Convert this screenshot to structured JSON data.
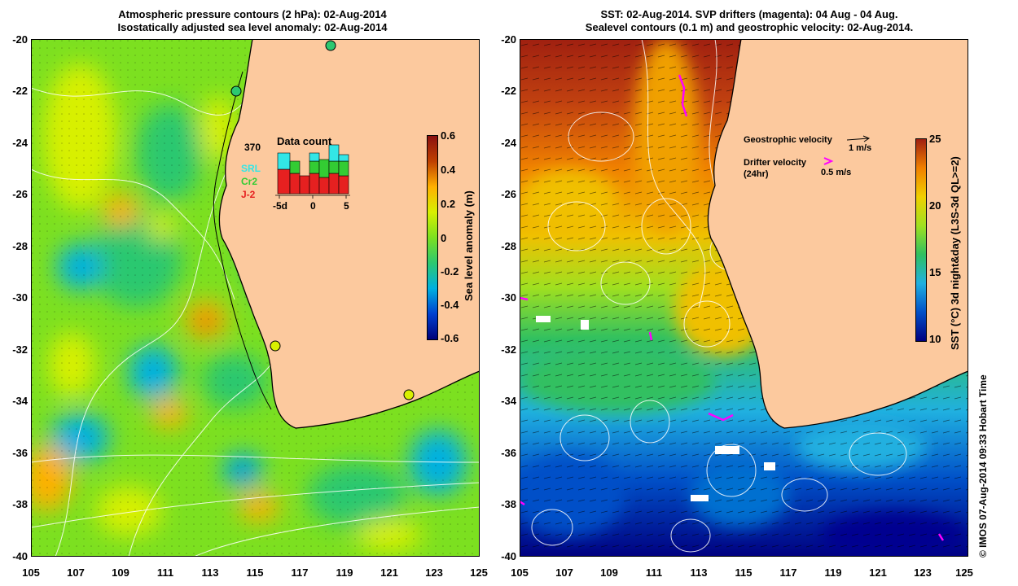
{
  "left_panel": {
    "title_line1": "Atmospheric pressure contours (2 hPa): 02-Aug-2014",
    "title_line2": "Isostatically adjusted sea level anomaly: 02-Aug-2014",
    "colorbar_label": "Sea level anomaly (m)",
    "colorbar_ticks": [
      "0.6",
      "0.4",
      "0.2",
      "0",
      "-0.2",
      "-0.4",
      "-0.6"
    ],
    "inset": {
      "total": "370",
      "title": "Data count",
      "series": [
        {
          "label": "SRL",
          "color": "#33e6e6"
        },
        {
          "label": "Cr2",
          "color": "#33cc33"
        },
        {
          "label": "J-2",
          "color": "#e62020"
        }
      ],
      "xticks": [
        "-5d",
        "0",
        "5"
      ]
    }
  },
  "right_panel": {
    "title_line1": "SST: 02-Aug-2014. SVP drifters (magenta): 04 Aug - 04 Aug.",
    "title_line2": "Sealevel contours (0.1 m) and geostrophic velocity: 02-Aug-2014.",
    "colorbar_label": "SST (°C) 3d night&day (L3S-3d QL>=2)",
    "colorbar_ticks": [
      "25",
      "20",
      "15",
      "10"
    ],
    "legend": {
      "geo_label": "Geostrophic velocity",
      "geo_scale": "1 m/s",
      "drifter_label": "Drifter velocity",
      "drifter_period": "(24hr)",
      "drifter_scale": "0.5 m/s"
    }
  },
  "axes": {
    "lat_ticks": [
      "-20",
      "-22",
      "-24",
      "-26",
      "-28",
      "-30",
      "-32",
      "-34",
      "-36",
      "-38",
      "-40"
    ],
    "lon_ticks": [
      "105",
      "107",
      "109",
      "111",
      "113",
      "115",
      "117",
      "119",
      "121",
      "123",
      "125"
    ]
  },
  "credit": "© IMOS 07-Aug-2014 09:33 Hobart Time",
  "colors": {
    "land": "#fcc99e",
    "sla_ramp": [
      "#00007a",
      "#0040d0",
      "#00b0e0",
      "#2cc870",
      "#7ce020",
      "#d8f000",
      "#ffb000",
      "#c04000",
      "#8a1010"
    ],
    "sst_ramp": [
      "#000080",
      "#0050c8",
      "#20b0e0",
      "#30c060",
      "#a0e020",
      "#f0d000",
      "#f08000",
      "#a02010"
    ],
    "drifter": "#ff00ff"
  }
}
